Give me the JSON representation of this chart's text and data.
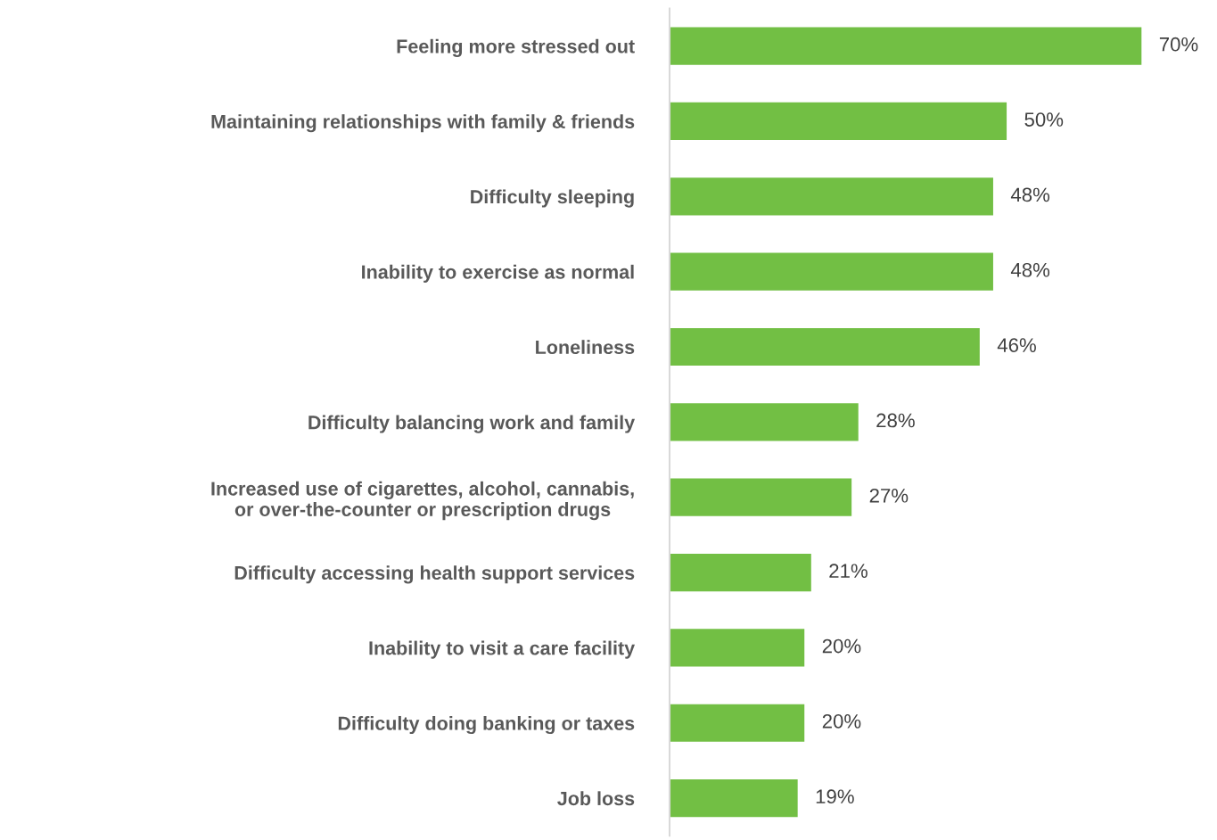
{
  "chart_data": {
    "type": "bar",
    "orientation": "horizontal",
    "categories": [
      "Feeling more stressed out",
      "Maintaining relationships with family & friends",
      "Difficulty sleeping",
      "Inability to exercise as normal",
      "Loneliness",
      "Difficulty balancing work and family",
      "Increased use of cigarettes, alcohol, cannabis,\nor over-the-counter or prescription drugs",
      "Difficulty accessing health support services",
      "Inability to visit a care facility",
      "Difficulty doing banking or taxes",
      "Job loss"
    ],
    "values": [
      70,
      50,
      48,
      48,
      46,
      28,
      27,
      21,
      20,
      20,
      19
    ],
    "value_labels": [
      "70%",
      "50%",
      "48%",
      "48%",
      "46%",
      "28%",
      "27%",
      "21%",
      "20%",
      "20%",
      "19%"
    ],
    "color": "#72bf44",
    "grid": false,
    "legend": false
  }
}
